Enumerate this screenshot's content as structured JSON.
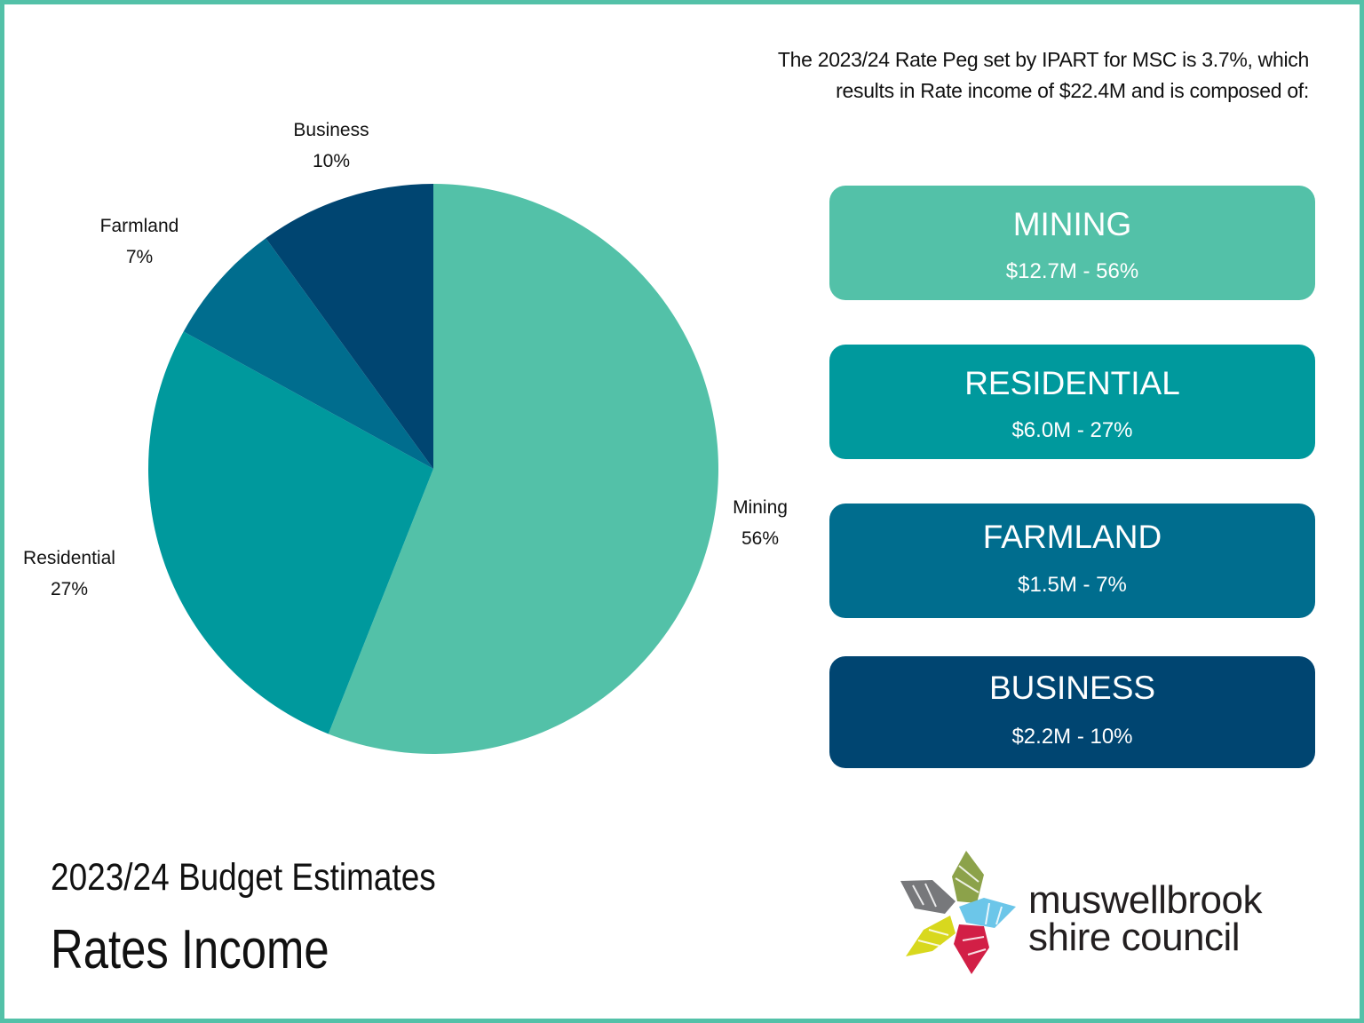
{
  "intro": {
    "line1": "The 2023/24 Rate Peg set by IPART for MSC is 3.7%, which",
    "line2": "results in Rate income of $22.4M and is composed of:"
  },
  "cards": [
    {
      "category": "MINING",
      "amount": "$12.7M - 56%",
      "color": "#53c1a8"
    },
    {
      "category": "RESIDENTIAL",
      "amount": "$6.0M - 27%",
      "color": "#00999d"
    },
    {
      "category": "FARMLAND",
      "amount": "$1.5M - 7%",
      "color": "#006d8e"
    },
    {
      "category": "BUSINESS",
      "amount": "$2.2M - 10%",
      "color": "#004571"
    }
  ],
  "chart_data": {
    "type": "pie",
    "categories": [
      "Mining",
      "Residential",
      "Farmland",
      "Business"
    ],
    "values": [
      56,
      27,
      7,
      10
    ],
    "value_labels": [
      "56%",
      "27%",
      "7%",
      "10%"
    ],
    "colors": [
      "#53c1a8",
      "#00999d",
      "#006d8e",
      "#004571"
    ],
    "start_angle_deg": 0,
    "direction": "clockwise"
  },
  "titles": {
    "line1": "2023/24 Budget Estimates",
    "line2": "Rates Income"
  },
  "logo": {
    "line1": "muswellbrook",
    "line2": "shire council"
  },
  "frame_color": "#53c1a8"
}
